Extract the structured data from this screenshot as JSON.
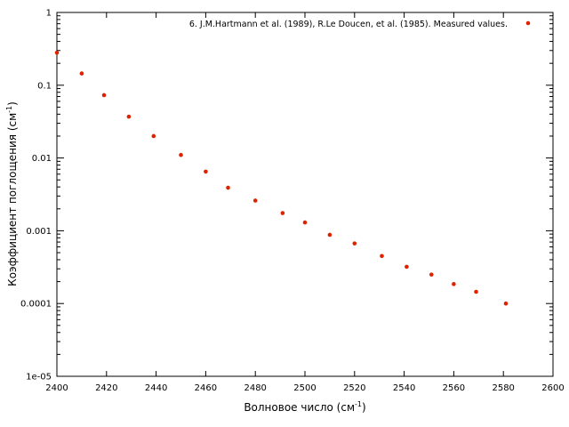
{
  "chart_data": {
    "type": "scatter",
    "title": "",
    "xlabel": {
      "text": "Волновое число (см",
      "sup": "-1",
      "tail": ")"
    },
    "ylabel": {
      "text": "Коэффициент поглощения (см",
      "sup": "-1",
      "tail": ")"
    },
    "xlim": [
      2400,
      2600
    ],
    "ylim": [
      1e-05,
      1
    ],
    "y_scale": "log",
    "grid": false,
    "legend_position": "top-right",
    "x_ticks": [
      2400,
      2420,
      2440,
      2460,
      2480,
      2500,
      2520,
      2540,
      2560,
      2580,
      2600
    ],
    "x_tick_labels": [
      "2400",
      "2420",
      "2440",
      "2460",
      "2480",
      "2500",
      "2520",
      "2540",
      "2560",
      "2580",
      "2600"
    ],
    "y_ticks": [
      1e-05,
      0.0001,
      0.001,
      0.01,
      0.1,
      1
    ],
    "y_tick_labels": [
      "1e-05",
      "0.0001",
      "0.001",
      "0.01",
      "0.1",
      "1"
    ],
    "series": [
      {
        "name": "6. J.M.Hartmann et al. (1989), R.Le Doucen, et al. (1985). Measured values.",
        "color": "#dd2200",
        "x": [
          2400,
          2410,
          2419,
          2429,
          2439,
          2450,
          2460,
          2469,
          2480,
          2491,
          2500,
          2510,
          2520,
          2531,
          2541,
          2551,
          2560,
          2569,
          2581
        ],
        "y": [
          0.28,
          0.145,
          0.073,
          0.037,
          0.02,
          0.011,
          0.0065,
          0.0039,
          0.0026,
          0.00175,
          0.0013,
          0.00088,
          0.00067,
          0.00045,
          0.00032,
          0.00025,
          0.000185,
          0.000145,
          0.0001
        ]
      }
    ]
  }
}
